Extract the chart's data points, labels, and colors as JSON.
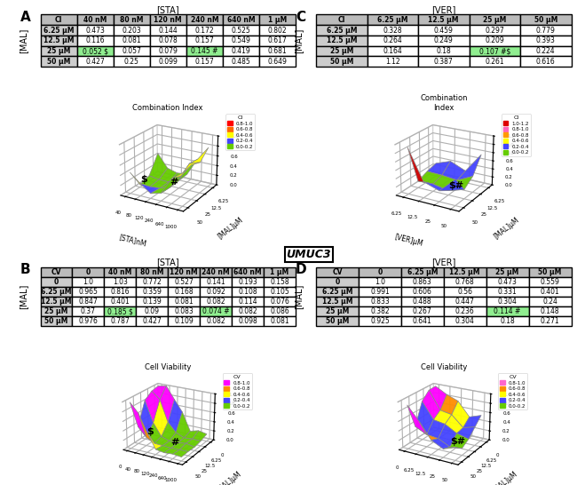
{
  "panel_A": {
    "title": "Combination Index",
    "xlabel": "[STA]nM",
    "ylabel": "[MAL]μM",
    "table_header_col": [
      "40 nM",
      "80 nM",
      "120 nM",
      "240 nM",
      "640 nM",
      "1 μM"
    ],
    "table_header_row": [
      "6.25 μM",
      "12.5 μM",
      "25 μM",
      "50 μM"
    ],
    "table_data": [
      [
        0.473,
        0.203,
        0.144,
        0.172,
        0.525,
        0.802
      ],
      [
        0.116,
        0.081,
        0.078,
        0.157,
        0.549,
        0.617
      ],
      [
        0.052,
        0.057,
        0.079,
        0.145,
        0.419,
        0.681
      ],
      [
        0.427,
        0.25,
        0.099,
        0.157,
        0.485,
        0.649
      ]
    ],
    "highlighted": [
      [
        2,
        0,
        "$"
      ],
      [
        2,
        3,
        "#"
      ]
    ],
    "sta_ticks": [
      "40",
      "80",
      "120",
      "240",
      "640",
      "1000"
    ],
    "mal_ticks": [
      "6.25",
      "12.5",
      "25",
      "50"
    ],
    "legend_labels": [
      "0.8-1.0",
      "0.6-0.8",
      "0.4-0.6",
      "0.2-0.4",
      "0.0-0.2"
    ],
    "legend_colors": [
      "#FF0000",
      "#FF6600",
      "#FFFF00",
      "#4444FF",
      "#66CC00"
    ],
    "elev": 22,
    "azim": -60
  },
  "panel_B": {
    "title": "Cell Viability",
    "xlabel": "[STA]nM",
    "ylabel": "[MAL]μM",
    "table_header_col": [
      "0",
      "40 nM",
      "80 nM",
      "120 nM",
      "240 nM",
      "640 nM",
      "1 μM"
    ],
    "table_header_row": [
      "0",
      "6.25 μM",
      "12.5 μM",
      "25 μM",
      "50 μM"
    ],
    "table_data": [
      [
        1.0,
        1.03,
        0.772,
        0.527,
        0.141,
        0.193,
        0.158
      ],
      [
        0.965,
        0.816,
        0.359,
        0.168,
        0.092,
        0.108,
        0.105
      ],
      [
        0.847,
        0.401,
        0.139,
        0.081,
        0.082,
        0.114,
        0.076
      ],
      [
        0.37,
        0.185,
        0.09,
        0.083,
        0.074,
        0.082,
        0.086
      ],
      [
        0.976,
        0.787,
        0.427,
        0.109,
        0.082,
        0.098,
        0.081
      ]
    ],
    "highlighted": [
      [
        3,
        1,
        "$"
      ],
      [
        3,
        4,
        "#"
      ]
    ],
    "sta_ticks": [
      "0",
      "40",
      "80",
      "120",
      "240",
      "640",
      "1000"
    ],
    "mal_ticks": [
      "0",
      "6.25",
      "12.5",
      "25",
      "50"
    ],
    "legend_labels": [
      "0.8-1.0",
      "0.6-0.8",
      "0.4-0.6",
      "0.2-0.4",
      "0.0-0.2"
    ],
    "legend_colors": [
      "#FF00FF",
      "#FF8C00",
      "#FFFF00",
      "#4444FF",
      "#66CC00"
    ],
    "elev": 22,
    "azim": -60
  },
  "panel_C": {
    "title": "Combination\nIndex",
    "xlabel": "[VER]μM",
    "ylabel": "[MAL]μM",
    "table_header_col": [
      "6.25 μM",
      "12.5 μM",
      "25 μM",
      "50 μM"
    ],
    "table_header_row": [
      "6.25 μM",
      "12.5 μM",
      "25 μM",
      "50 μM"
    ],
    "table_data": [
      [
        0.328,
        0.459,
        0.297,
        0.779
      ],
      [
        0.264,
        0.249,
        0.209,
        0.393
      ],
      [
        0.164,
        0.18,
        0.107,
        0.224
      ],
      [
        1.12,
        0.387,
        0.261,
        0.616
      ]
    ],
    "highlighted": [
      [
        2,
        2,
        "#$"
      ]
    ],
    "ver_ticks": [
      "6.25",
      "12.5",
      "25",
      "50"
    ],
    "mal_ticks": [
      "6.25",
      "12.5",
      "25",
      "50"
    ],
    "legend_labels": [
      "1.0-1.2",
      "0.8-1.0",
      "0.6-0.8",
      "0.4-0.6",
      "0.2-0.4",
      "0.0-0.2"
    ],
    "legend_colors": [
      "#DD0000",
      "#FF66BB",
      "#FF9900",
      "#FFFF00",
      "#4444FF",
      "#66CC00"
    ],
    "elev": 22,
    "azim": -60
  },
  "panel_D": {
    "title": "Cell Viability",
    "xlabel": "[VER]μM",
    "ylabel": "[MAL]μM",
    "table_header_col": [
      "0",
      "6.25 μM",
      "12.5 μM",
      "25 μM",
      "50 μM"
    ],
    "table_header_row": [
      "0",
      "6.25 μM",
      "12.5 μM",
      "25 μM",
      "50 μM"
    ],
    "table_data": [
      [
        1.0,
        0.863,
        0.768,
        0.473,
        0.559
      ],
      [
        0.991,
        0.606,
        0.56,
        0.331,
        0.401
      ],
      [
        0.833,
        0.488,
        0.447,
        0.304,
        0.24
      ],
      [
        0.382,
        0.267,
        0.236,
        0.114,
        0.148
      ],
      [
        0.925,
        0.641,
        0.304,
        0.18,
        0.271
      ]
    ],
    "highlighted": [
      [
        3,
        3,
        "#"
      ]
    ],
    "ver_ticks": [
      "0",
      "6.25",
      "12.5",
      "25",
      "50"
    ],
    "mal_ticks": [
      "0",
      "6.25",
      "12.5",
      "25",
      "50"
    ],
    "legend_labels": [
      "0.8-1.0",
      "0.6-0.8",
      "0.4-0.6",
      "0.2-0.4",
      "0.0-0.2"
    ],
    "legend_colors": [
      "#FF66CC",
      "#FF8C00",
      "#FFFF00",
      "#4444FF",
      "#66CC00"
    ],
    "elev": 22,
    "azim": -60
  },
  "umuc3_label": "UMUC3"
}
